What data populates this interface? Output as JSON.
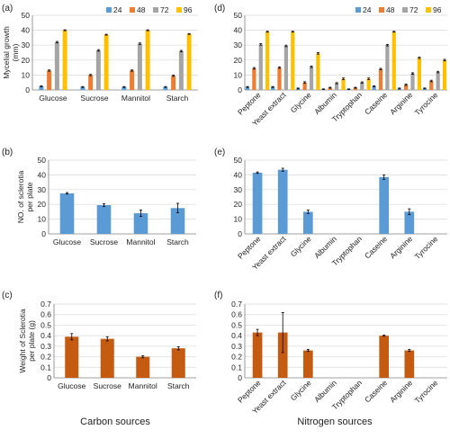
{
  "colors": {
    "t24": "#5b9bd5",
    "t48": "#ed7d31",
    "t72": "#a5a5a5",
    "t96": "#ffc000",
    "bar_main": "#c55a11",
    "bar_blue": "#5b9bd5",
    "axis": "#808080",
    "grid": "#d9d9d9"
  },
  "footer": {
    "left": "Carbon sources",
    "right": "Nitrogen sources"
  },
  "chart_data": [
    {
      "panel": "(a)",
      "type": "bar",
      "categories": [
        "Glucose",
        "Sucrose",
        "Mannitol",
        "Starch"
      ],
      "ylabel": "Mycelial growth (mm)",
      "ylim": [
        0,
        50
      ],
      "yticks": [
        0,
        10,
        20,
        30,
        40,
        50
      ],
      "grid": true,
      "legend": "top-right",
      "xtick_rotation": 0,
      "series": [
        {
          "name": "24",
          "values": [
            2.5,
            2,
            2,
            2
          ],
          "errors": [
            0.3,
            0.3,
            0.3,
            0.3
          ]
        },
        {
          "name": "48",
          "values": [
            13,
            10,
            13,
            9.5
          ],
          "errors": [
            0.4,
            0.4,
            0.4,
            0.4
          ]
        },
        {
          "name": "72",
          "values": [
            32,
            26.5,
            31,
            26
          ],
          "errors": [
            0.5,
            0.5,
            0.5,
            0.5
          ]
        },
        {
          "name": "96",
          "values": [
            40,
            37,
            40,
            37.5
          ],
          "errors": [
            0.3,
            0.3,
            0.3,
            0.3
          ]
        }
      ]
    },
    {
      "panel": "(d)",
      "type": "bar",
      "categories": [
        "Peptone",
        "Yeast extract",
        "Glycine",
        "Albumin",
        "Tryptophan",
        "Caseine",
        "Arginine",
        "Tyrocine"
      ],
      "ylabel": "",
      "ylim": [
        0,
        50
      ],
      "yticks": [
        0,
        10,
        20,
        30,
        40,
        50
      ],
      "grid": true,
      "legend": "top-right",
      "xtick_rotation": -45,
      "series": [
        {
          "name": "24",
          "values": [
            2,
            2,
            1,
            0.5,
            0.5,
            2.5,
            1,
            1
          ],
          "errors": [
            0.3,
            0.3,
            0.3,
            0.2,
            0.2,
            0.3,
            0.3,
            0.3
          ]
        },
        {
          "name": "48",
          "values": [
            14.5,
            15,
            5,
            1.5,
            1.5,
            14,
            3.5,
            6
          ],
          "errors": [
            0.5,
            0.5,
            0.5,
            0.3,
            0.3,
            0.5,
            0.5,
            0.5
          ]
        },
        {
          "name": "72",
          "values": [
            30.5,
            29.5,
            15.5,
            4.5,
            5,
            30,
            11,
            12
          ],
          "errors": [
            0.5,
            0.5,
            0.5,
            0.4,
            0.4,
            0.5,
            0.5,
            0.5
          ]
        },
        {
          "name": "96",
          "values": [
            39,
            39,
            24.5,
            7.5,
            7.5,
            39,
            21.5,
            20
          ],
          "errors": [
            0.3,
            0.3,
            0.5,
            0.5,
            0.5,
            0.3,
            0.5,
            0.5
          ]
        }
      ]
    },
    {
      "panel": "(b)",
      "type": "bar",
      "categories": [
        "Glucose",
        "Sucrose",
        "Mannitol",
        "Starch"
      ],
      "ylabel": "NO. of sclerotia per plate",
      "ylim": [
        0,
        50
      ],
      "yticks": [
        0,
        10,
        20,
        30,
        40,
        50
      ],
      "grid": true,
      "legend": "none",
      "xtick_rotation": 0,
      "series": [
        {
          "values": [
            27.5,
            19.5,
            14,
            17.5
          ],
          "errors": [
            0.5,
            1,
            2.2,
            3.2
          ]
        }
      ]
    },
    {
      "panel": "(e)",
      "type": "bar",
      "categories": [
        "Peptone",
        "Yeast extract",
        "Glycine",
        "Albumin",
        "Tryptophan",
        "Caseine",
        "Arginine",
        "Tyrocine"
      ],
      "ylabel": "",
      "ylim": [
        0,
        50
      ],
      "yticks": [
        0,
        10,
        20,
        30,
        40,
        50
      ],
      "grid": true,
      "legend": "none",
      "xtick_rotation": -45,
      "series": [
        {
          "values": [
            41.5,
            43.5,
            15,
            0,
            0,
            38.5,
            15,
            0
          ],
          "errors": [
            0.5,
            1,
            1.2,
            0,
            0,
            1.5,
            2,
            0
          ]
        }
      ]
    },
    {
      "panel": "(c)",
      "type": "bar",
      "categories": [
        "Glucose",
        "Sucrose",
        "Mannitol",
        "Starch"
      ],
      "ylabel": "Weight of Sclerotia per plate (g)",
      "ylim": [
        0,
        0.7
      ],
      "yticks": [
        0,
        0.1,
        0.2,
        0.3,
        0.4,
        0.5,
        0.6,
        0.7
      ],
      "grid": true,
      "legend": "none",
      "xtick_rotation": 0,
      "series": [
        {
          "values": [
            0.39,
            0.37,
            0.2,
            0.28
          ],
          "errors": [
            0.03,
            0.02,
            0.01,
            0.015
          ]
        }
      ]
    },
    {
      "panel": "(f)",
      "type": "bar",
      "categories": [
        "Peptone",
        "Yeast extract",
        "Glycine",
        "Albumin",
        "Tryptophan",
        "Caseine",
        "Arginine",
        "Tyrocine"
      ],
      "ylabel": "",
      "ylim": [
        0,
        0.7
      ],
      "yticks": [
        0,
        0.1,
        0.2,
        0.3,
        0.4,
        0.5,
        0.6,
        0.7
      ],
      "grid": true,
      "legend": "none",
      "xtick_rotation": -45,
      "series": [
        {
          "values": [
            0.43,
            0.43,
            0.26,
            0,
            0,
            0.4,
            0.26,
            0
          ],
          "errors": [
            0.03,
            0.19,
            0.01,
            0,
            0,
            0.005,
            0.01,
            0
          ]
        }
      ]
    }
  ]
}
